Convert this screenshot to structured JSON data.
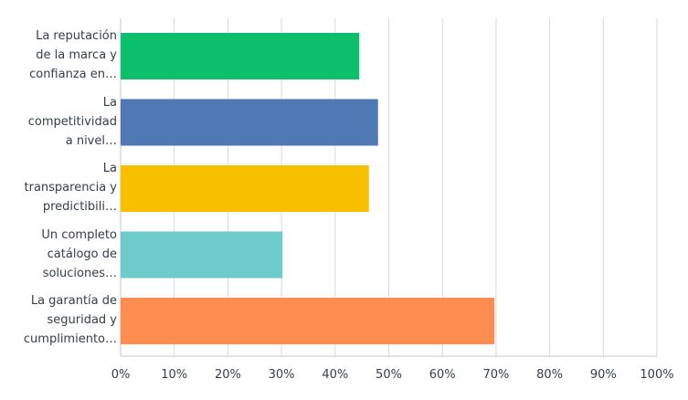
{
  "chart_data": {
    "type": "bar",
    "orientation": "horizontal",
    "categories": [
      "La reputación de la marca y confianza en…",
      "La competitividad a nivel…",
      "La transparencia y predictibili…",
      "Un completo catálogo de soluciones…",
      "La garantía de seguridad y cumplimiento…"
    ],
    "category_lines": [
      [
        "La reputación",
        "de la marca y",
        "confianza en…"
      ],
      [
        "La",
        "competitividad",
        "a nivel…"
      ],
      [
        "La",
        "transparencia y",
        "predictibili…"
      ],
      [
        "Un completo",
        "catálogo de",
        "soluciones…"
      ],
      [
        "La garantía de",
        "seguridad y",
        "cumplimiento…"
      ]
    ],
    "values": [
      44.5,
      48,
      46.3,
      30.2,
      69.7
    ],
    "colors": [
      "#0bbf6c",
      "#5078b4",
      "#f7bf00",
      "#6ecbcc",
      "#ff8c50"
    ],
    "xlim": [
      0,
      100
    ],
    "xticks": [
      0,
      10,
      20,
      30,
      40,
      50,
      60,
      70,
      80,
      90,
      100
    ],
    "xtick_labels": [
      "0%",
      "10%",
      "20%",
      "30%",
      "40%",
      "50%",
      "60%",
      "70%",
      "80%",
      "90%",
      "100%"
    ],
    "grid": true,
    "title": "",
    "xlabel": "",
    "ylabel": ""
  }
}
